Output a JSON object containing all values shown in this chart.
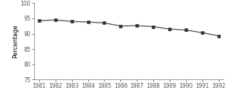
{
  "years": [
    1981,
    1982,
    1983,
    1984,
    1985,
    1986,
    1987,
    1988,
    1989,
    1990,
    1991,
    1992
  ],
  "values": [
    94.2,
    94.5,
    94.0,
    93.8,
    93.5,
    92.5,
    92.6,
    92.3,
    91.5,
    91.2,
    90.3,
    89.3
  ],
  "ylim": [
    75,
    100
  ],
  "yticks": [
    75,
    80,
    85,
    90,
    95,
    100
  ],
  "ylabel": "Percentage",
  "line_color": "#555555",
  "marker": "s",
  "marker_color": "#333333",
  "marker_size": 3.5,
  "linewidth": 1.0,
  "background_color": "#ffffff",
  "axis_color": "#888888",
  "tick_fontsize": 5.5,
  "ylabel_fontsize": 6.0
}
